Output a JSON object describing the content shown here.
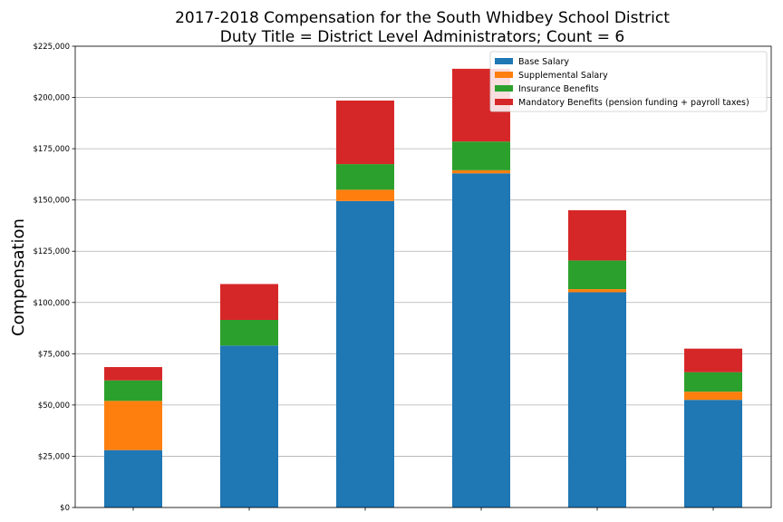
{
  "chart_data": {
    "type": "bar",
    "stacked": true,
    "title": "2017-2018 Compensation for the South Whidbey School District",
    "subtitle": "Duty Title = District Level Administrators; Count = 6",
    "xlabel": "",
    "ylabel": "Compensation",
    "ylim": [
      0,
      225000
    ],
    "yticks": [
      0,
      25000,
      50000,
      75000,
      100000,
      125000,
      150000,
      175000,
      200000,
      225000
    ],
    "ytick_labels": [
      "$0",
      "$25,000",
      "$50,000",
      "$75,000",
      "$100,000",
      "$125,000",
      "$150,000",
      "$175,000",
      "$200,000",
      "$225,000"
    ],
    "grid": "horizontal",
    "legend_position": "top-right",
    "categories": [
      "",
      "",
      "",
      "",
      "",
      ""
    ],
    "series": [
      {
        "name": "Base Salary",
        "color": "#1f77b4",
        "values": [
          28000,
          79000,
          149500,
          163000,
          105000,
          52500
        ]
      },
      {
        "name": "Supplemental Salary",
        "color": "#ff7f0e",
        "values": [
          24000,
          0,
          5500,
          1500,
          1500,
          4000
        ]
      },
      {
        "name": "Insurance Benefits",
        "color": "#2ca02c",
        "values": [
          10000,
          12500,
          12500,
          14000,
          14000,
          9500
        ]
      },
      {
        "name": "Mandatory Benefits (pension funding + payroll taxes)",
        "color": "#d62728",
        "values": [
          6500,
          17500,
          31000,
          35500,
          24500,
          11500
        ]
      }
    ]
  }
}
